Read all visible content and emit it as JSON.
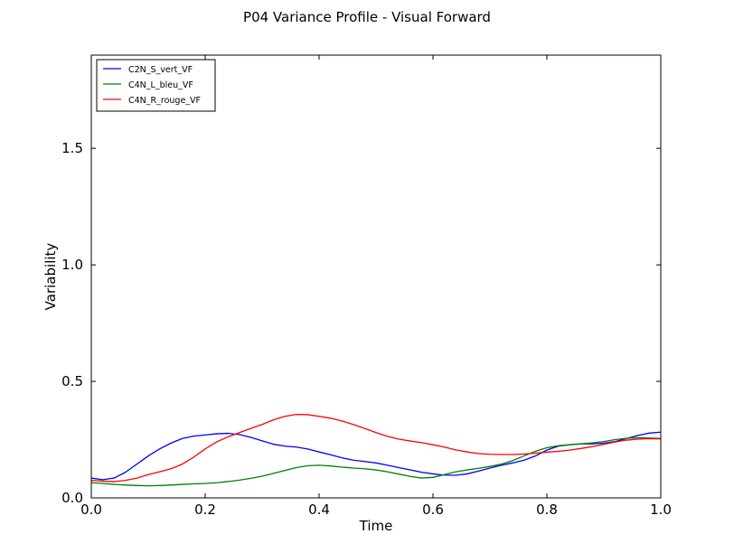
{
  "chart_data": {
    "type": "line",
    "title": "P04 Variance Profile - Visual Forward",
    "xlabel": "Time",
    "ylabel": "Variability",
    "xlim": [
      0.0,
      1.0
    ],
    "ylim": [
      0.0,
      1.9
    ],
    "xticks": [
      0.0,
      0.2,
      0.4,
      0.6,
      0.8,
      1.0
    ],
    "xtick_labels": [
      "0.0",
      "0.2",
      "0.4",
      "0.6",
      "0.8",
      "1.0"
    ],
    "yticks": [
      0.0,
      0.5,
      1.0,
      1.5
    ],
    "ytick_labels": [
      "0.0",
      "0.5",
      "1.0",
      "1.5"
    ],
    "grid": false,
    "legend_position": "top-left",
    "series": [
      {
        "name": "C2N_S_vert_VF",
        "color": "#0000ff",
        "x": [
          0.0,
          0.02,
          0.04,
          0.06,
          0.08,
          0.1,
          0.12,
          0.14,
          0.16,
          0.18,
          0.2,
          0.22,
          0.24,
          0.26,
          0.28,
          0.3,
          0.32,
          0.34,
          0.36,
          0.38,
          0.4,
          0.42,
          0.44,
          0.46,
          0.48,
          0.5,
          0.52,
          0.54,
          0.56,
          0.58,
          0.6,
          0.62,
          0.64,
          0.66,
          0.68,
          0.7,
          0.72,
          0.74,
          0.76,
          0.78,
          0.8,
          0.82,
          0.84,
          0.86,
          0.88,
          0.9,
          0.92,
          0.94,
          0.96,
          0.98,
          1.0
        ],
        "values": [
          0.085,
          0.078,
          0.085,
          0.11,
          0.145,
          0.18,
          0.21,
          0.235,
          0.255,
          0.265,
          0.27,
          0.275,
          0.277,
          0.272,
          0.26,
          0.245,
          0.23,
          0.222,
          0.218,
          0.21,
          0.197,
          0.185,
          0.172,
          0.162,
          0.156,
          0.15,
          0.14,
          0.13,
          0.12,
          0.11,
          0.103,
          0.098,
          0.097,
          0.103,
          0.115,
          0.128,
          0.14,
          0.15,
          0.162,
          0.18,
          0.205,
          0.222,
          0.228,
          0.232,
          0.232,
          0.235,
          0.242,
          0.255,
          0.268,
          0.278,
          0.282
        ]
      },
      {
        "name": "C4N_L_bleu_VF",
        "color": "#008000",
        "x": [
          0.0,
          0.02,
          0.04,
          0.06,
          0.08,
          0.1,
          0.12,
          0.14,
          0.16,
          0.18,
          0.2,
          0.22,
          0.24,
          0.26,
          0.28,
          0.3,
          0.32,
          0.34,
          0.36,
          0.38,
          0.4,
          0.42,
          0.44,
          0.46,
          0.48,
          0.5,
          0.52,
          0.54,
          0.56,
          0.58,
          0.6,
          0.62,
          0.64,
          0.66,
          0.68,
          0.7,
          0.72,
          0.74,
          0.76,
          0.78,
          0.8,
          0.82,
          0.84,
          0.86,
          0.88,
          0.9,
          0.92,
          0.94,
          0.96,
          0.98,
          1.0
        ],
        "values": [
          0.065,
          0.062,
          0.058,
          0.055,
          0.053,
          0.052,
          0.053,
          0.055,
          0.058,
          0.06,
          0.062,
          0.065,
          0.07,
          0.076,
          0.084,
          0.093,
          0.105,
          0.118,
          0.13,
          0.138,
          0.14,
          0.137,
          0.132,
          0.128,
          0.125,
          0.12,
          0.112,
          0.102,
          0.092,
          0.085,
          0.088,
          0.1,
          0.112,
          0.12,
          0.127,
          0.135,
          0.145,
          0.16,
          0.18,
          0.2,
          0.215,
          0.224,
          0.228,
          0.232,
          0.236,
          0.242,
          0.25,
          0.256,
          0.258,
          0.257,
          0.255
        ]
      },
      {
        "name": "C4N_R_rouge_VF",
        "color": "#ff0000",
        "x": [
          0.0,
          0.02,
          0.04,
          0.06,
          0.08,
          0.1,
          0.12,
          0.14,
          0.16,
          0.18,
          0.2,
          0.22,
          0.24,
          0.26,
          0.28,
          0.3,
          0.32,
          0.34,
          0.36,
          0.38,
          0.4,
          0.42,
          0.44,
          0.46,
          0.48,
          0.5,
          0.52,
          0.54,
          0.56,
          0.58,
          0.6,
          0.62,
          0.64,
          0.66,
          0.68,
          0.7,
          0.72,
          0.74,
          0.76,
          0.78,
          0.8,
          0.82,
          0.84,
          0.86,
          0.88,
          0.9,
          0.92,
          0.94,
          0.96,
          0.98,
          1.0
        ],
        "values": [
          0.075,
          0.072,
          0.07,
          0.075,
          0.085,
          0.1,
          0.112,
          0.125,
          0.145,
          0.175,
          0.21,
          0.24,
          0.262,
          0.28,
          0.298,
          0.315,
          0.335,
          0.35,
          0.358,
          0.357,
          0.35,
          0.342,
          0.33,
          0.315,
          0.298,
          0.28,
          0.264,
          0.252,
          0.244,
          0.237,
          0.228,
          0.218,
          0.206,
          0.197,
          0.19,
          0.187,
          0.186,
          0.186,
          0.188,
          0.192,
          0.196,
          0.2,
          0.205,
          0.212,
          0.22,
          0.23,
          0.24,
          0.248,
          0.252,
          0.254,
          0.253
        ]
      }
    ]
  }
}
